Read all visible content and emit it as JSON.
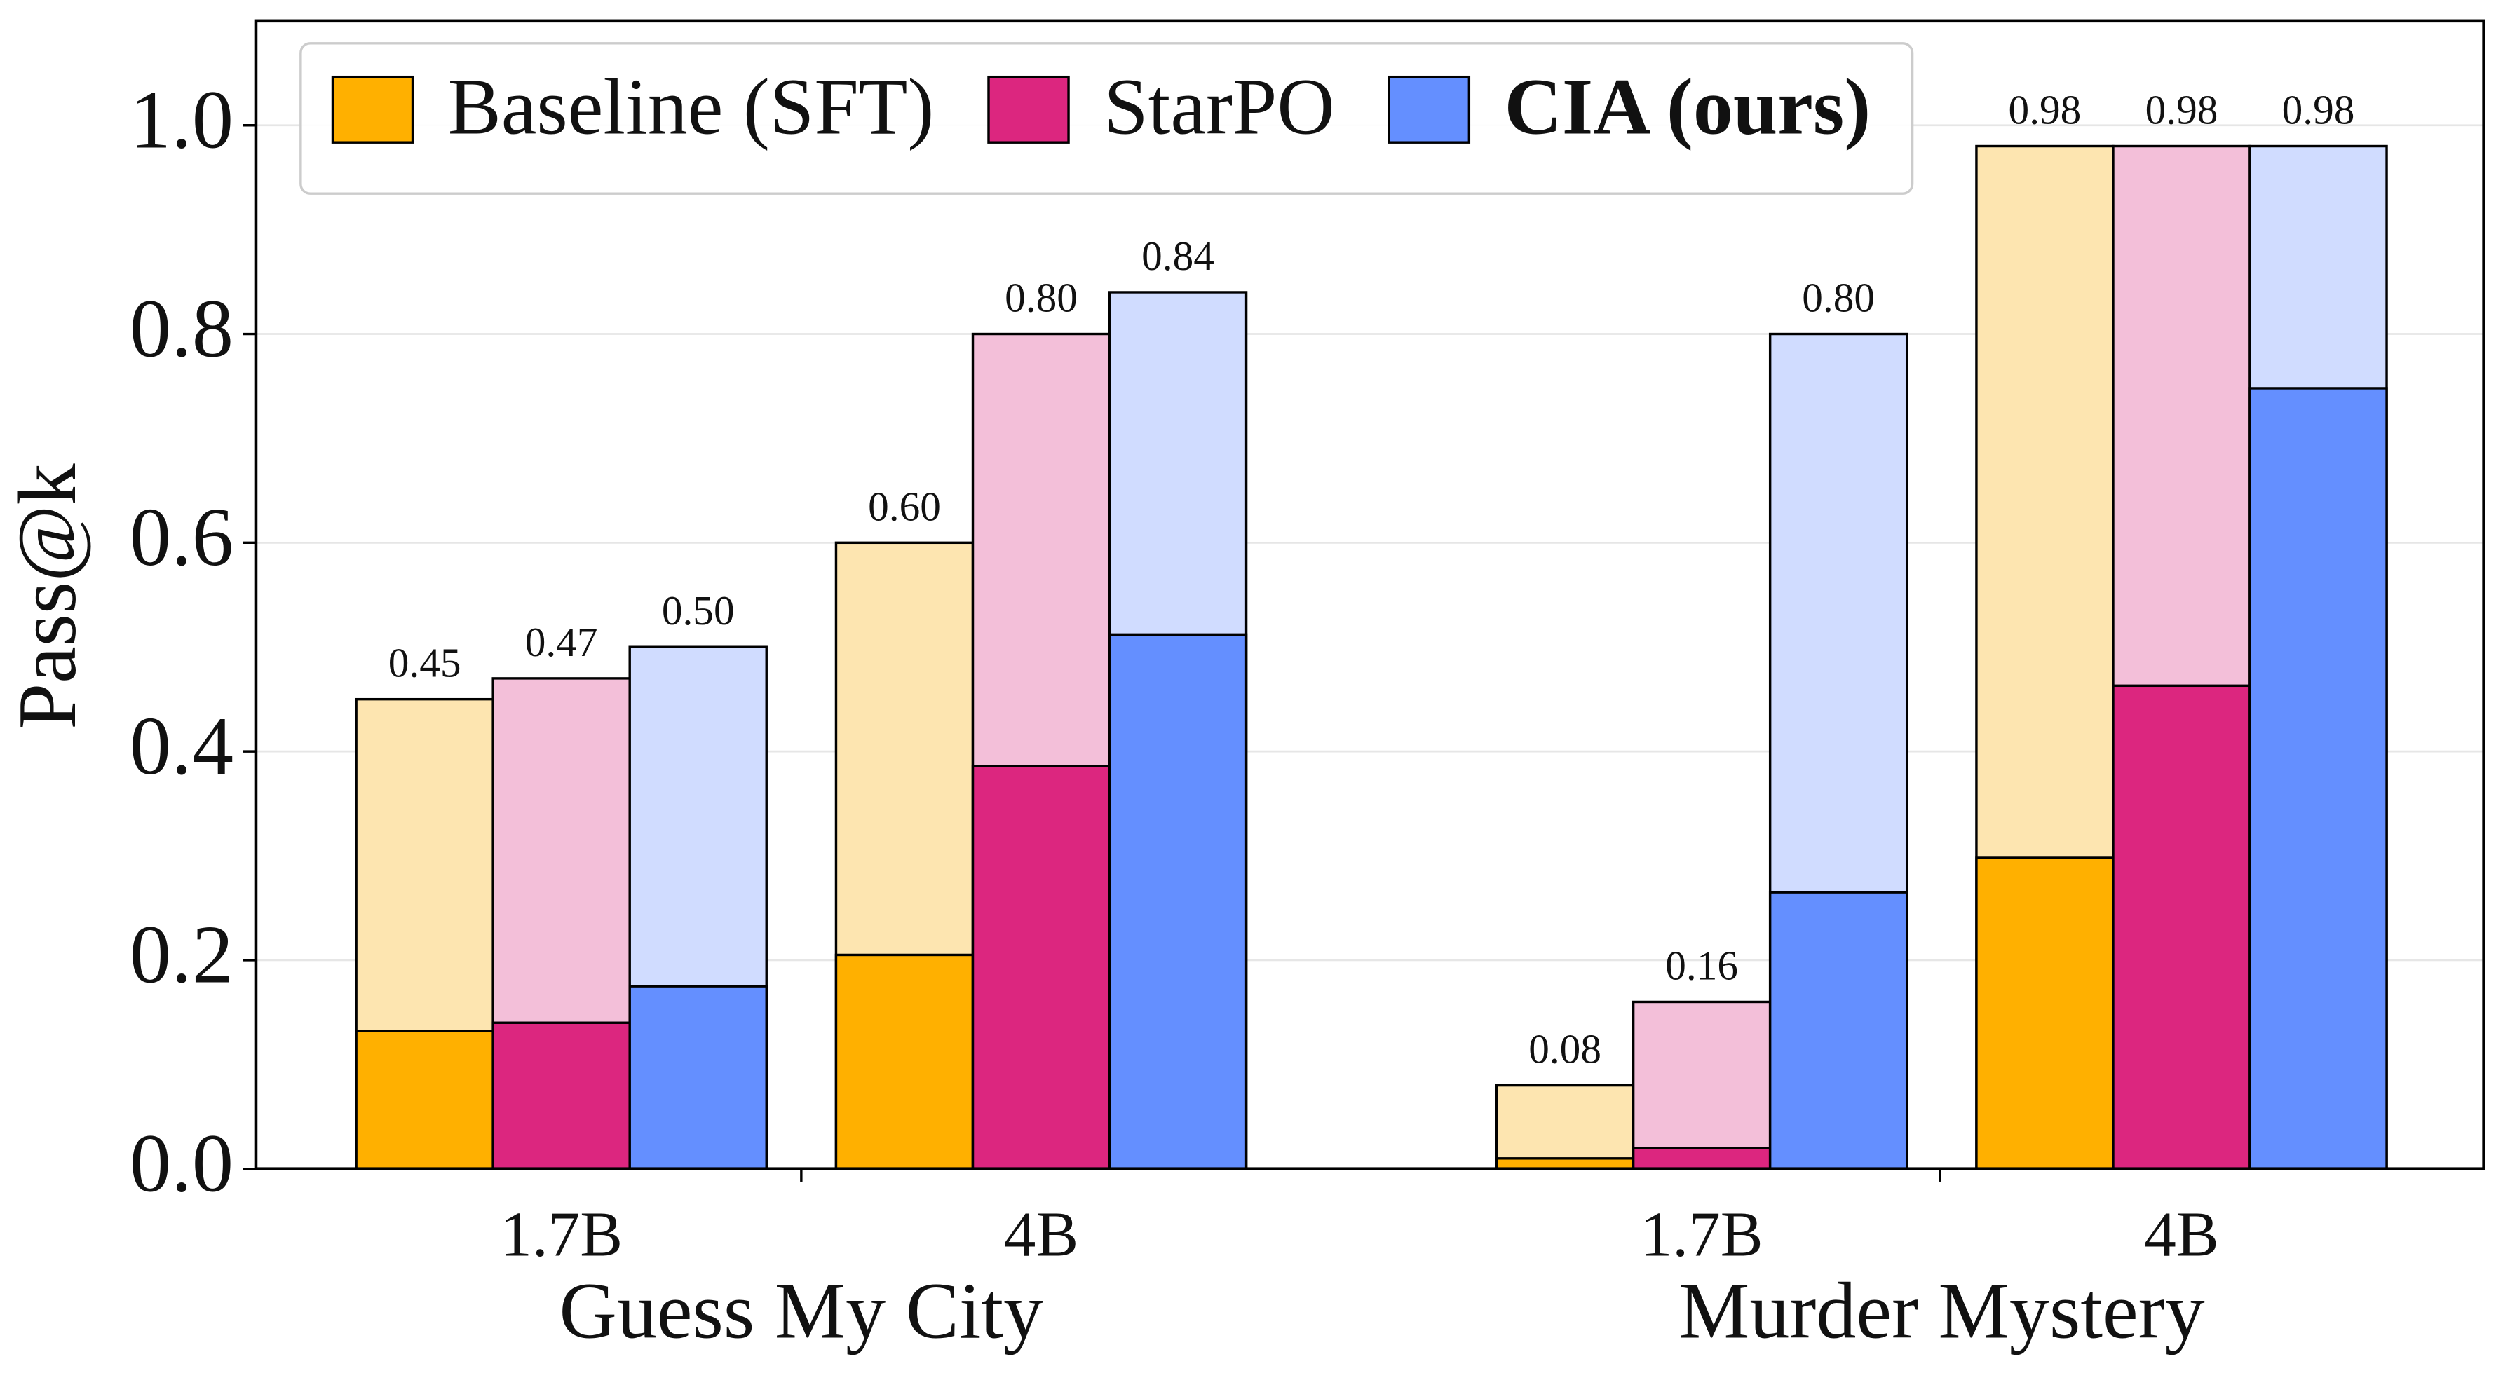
{
  "chart_data": {
    "type": "bar",
    "y_label": "Pass@k",
    "groups": [
      "Guess My City",
      "Murder Mystery"
    ],
    "categories": [
      "1.7B",
      "4B",
      "1.7B",
      "4B"
    ],
    "ylim": [
      0,
      1.1
    ],
    "yticks": [
      {
        "value": 0,
        "label": "0.0"
      },
      0.2,
      0.4,
      0.6,
      0.8,
      {
        "value": 1,
        "label": "1.0"
      }
    ],
    "grid": true,
    "legend": "upper left",
    "series": [
      {
        "name": "Baseline (SFT)",
        "color": "#ffb000",
        "light_color": "#fde5b0",
        "bold": false,
        "values": [
          0.45,
          0.6,
          0.08,
          0.98
        ],
        "value_labels": [
          "0.45",
          "0.60",
          "0.08",
          "0.98"
        ],
        "base_values": [
          0.132,
          0.205,
          0.01,
          0.298
        ]
      },
      {
        "name": "StarPO",
        "color": "#dc267f",
        "light_color": "#f3bfd9",
        "bold": false,
        "values": [
          0.47,
          0.8,
          0.16,
          0.98
        ],
        "value_labels": [
          "0.47",
          "0.80",
          "0.16",
          "0.98"
        ],
        "base_values": [
          0.14,
          0.386,
          0.02,
          0.463
        ]
      },
      {
        "name": "CIA (ours)",
        "color": "#648fff",
        "light_color": "#d0dcff",
        "bold": true,
        "values": [
          0.5,
          0.84,
          0.8,
          0.98
        ],
        "value_labels": [
          "0.50",
          "0.84",
          "0.80",
          "0.98"
        ],
        "base_values": [
          0.175,
          0.512,
          0.265,
          0.748
        ]
      }
    ]
  }
}
